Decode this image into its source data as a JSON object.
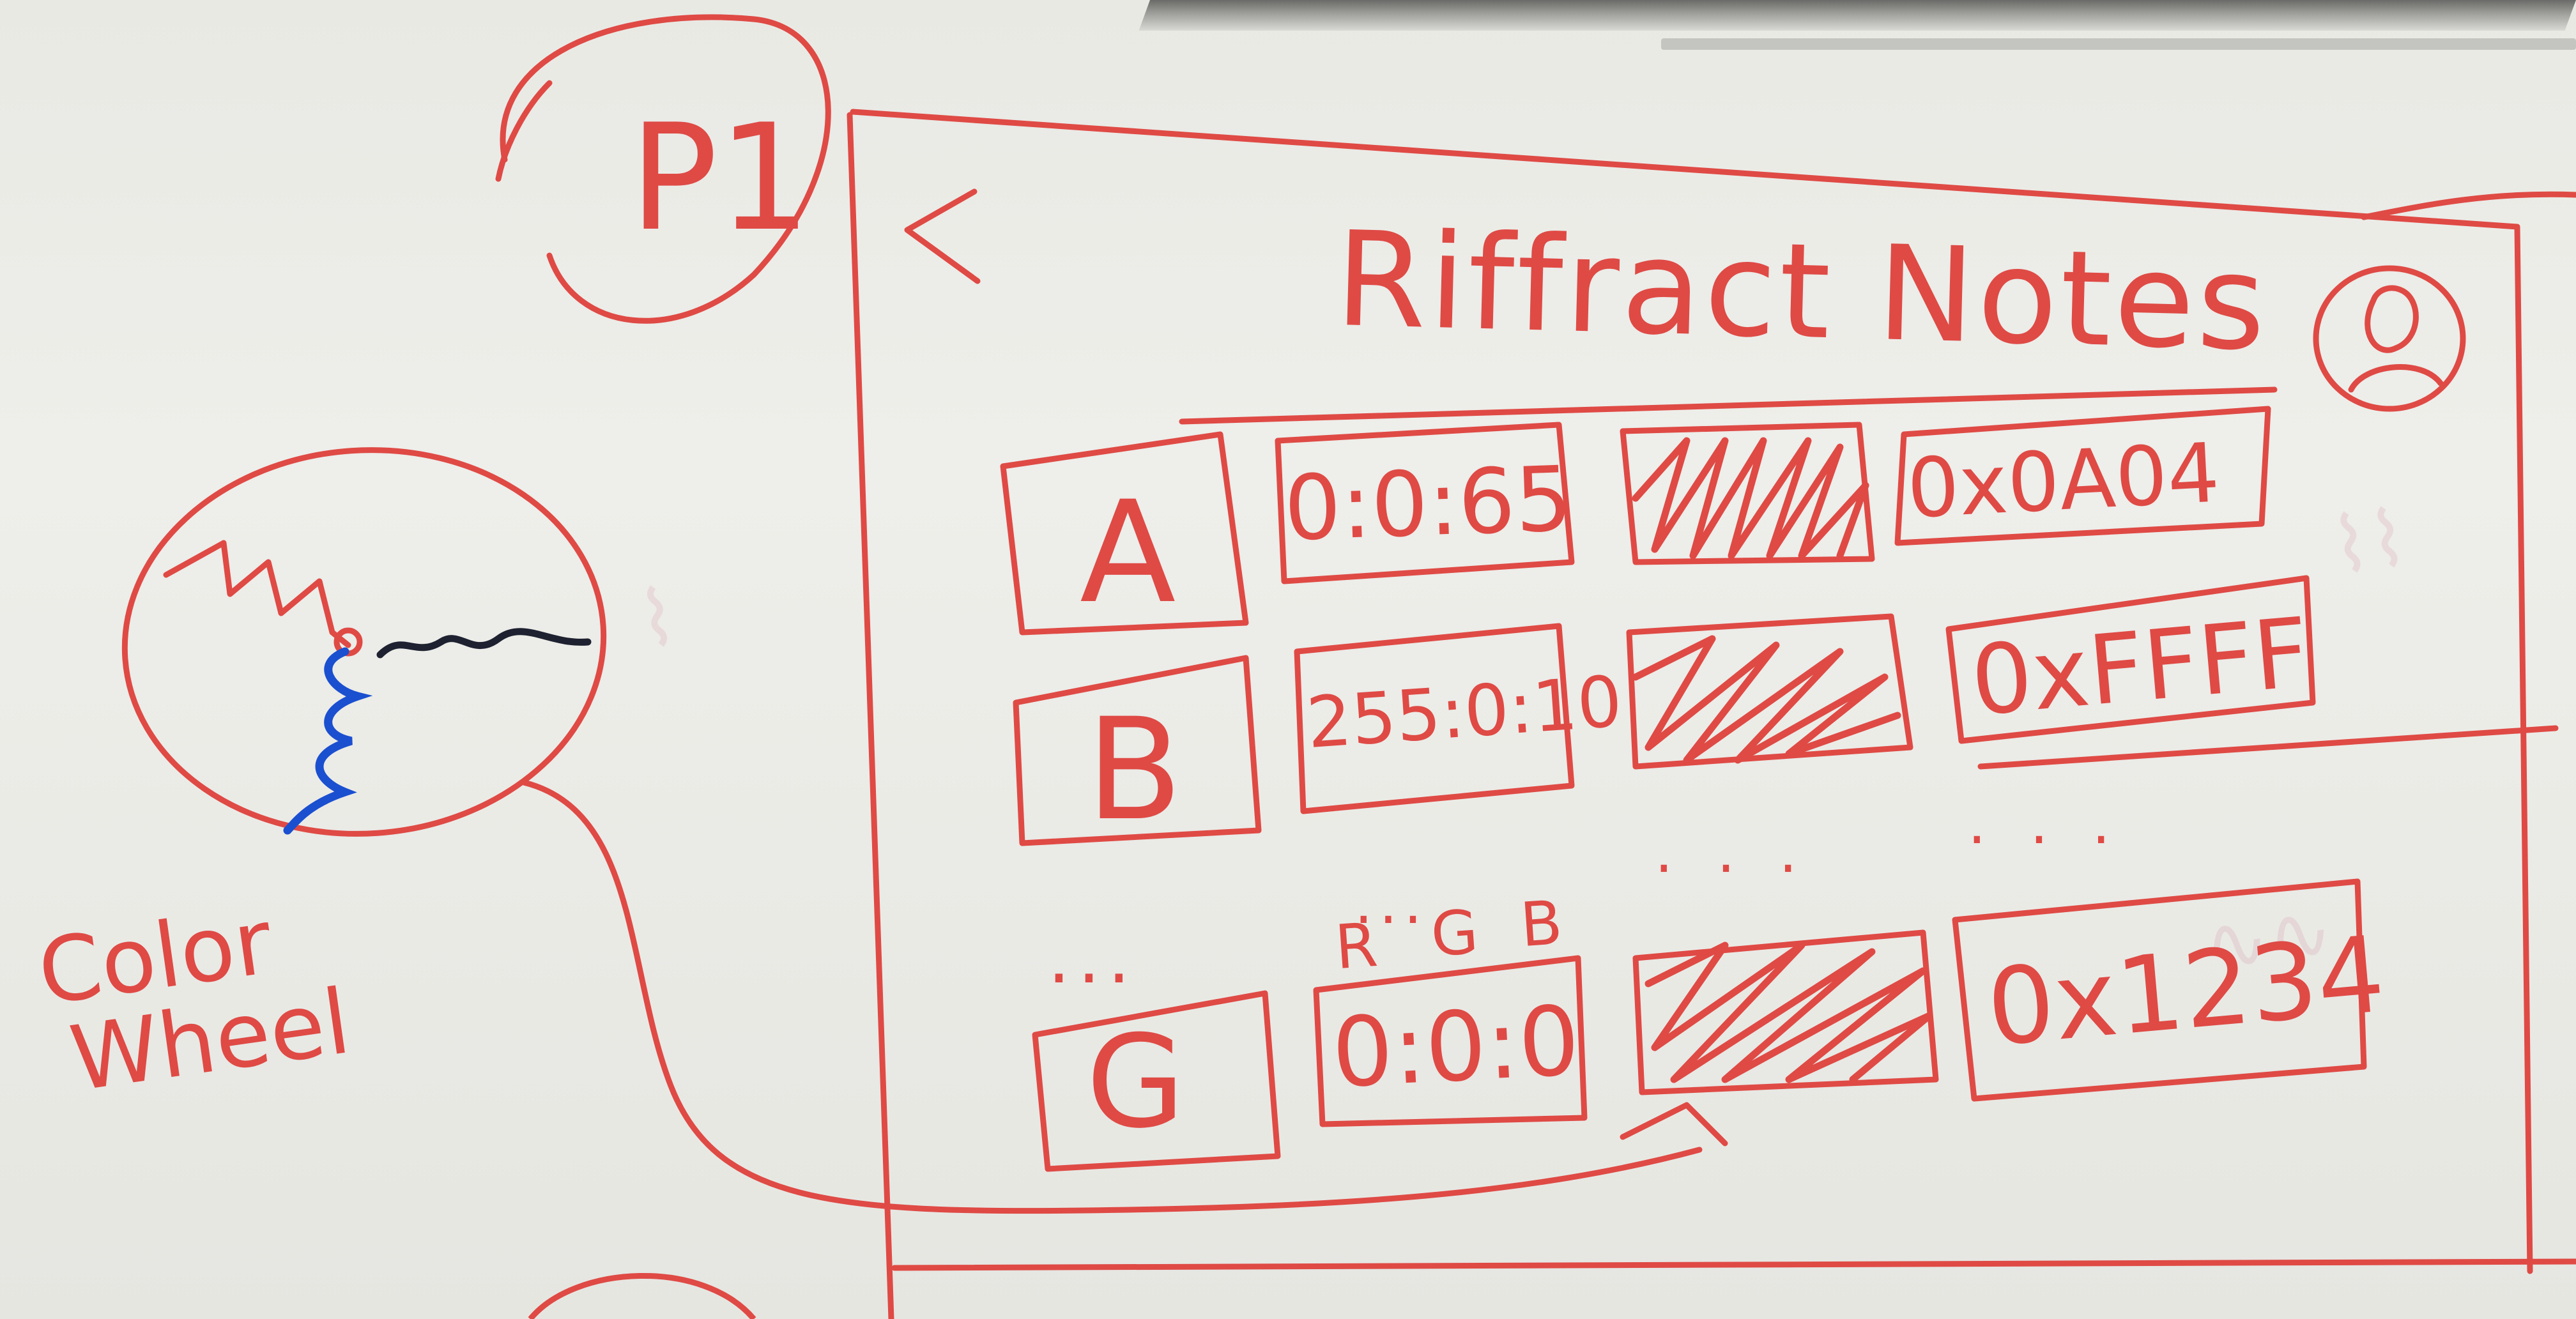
{
  "page_label": "P1",
  "back_glyph": "<",
  "app_title": "Riffract Notes",
  "profile_icon": "user-icon",
  "rows": [
    {
      "note": "A",
      "rgb": "0:0:65",
      "hex": "0x0A04"
    },
    {
      "note": "B",
      "rgb": "255:0:10",
      "hex": "0xFFFF"
    },
    {
      "note": "G",
      "rgb": "0:0:0",
      "hex": "0x1234"
    }
  ],
  "ellipsis_left": "...",
  "ellipsis_rgb": "...",
  "ellipsis_swatch": ". . .",
  "ellipsis_hex": ". . .",
  "rgb_header": {
    "r": "R",
    "g": "G",
    "b": "B"
  },
  "color_wheel_caption_line1": "Color",
  "color_wheel_caption_line2": "Wheel",
  "colors": {
    "marker_red": "#df4a45",
    "marker_blue": "#1a4fd0",
    "marker_black": "#1d2130",
    "board": "#ecece7"
  }
}
